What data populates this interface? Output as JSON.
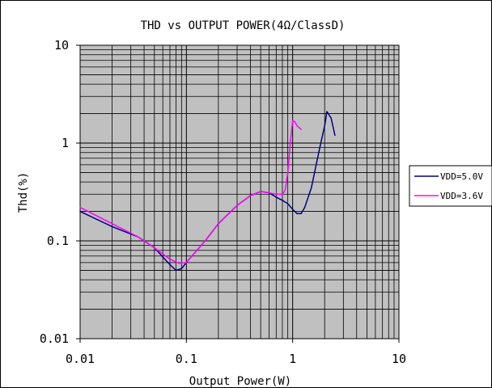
{
  "chart_data": {
    "type": "line",
    "title": "THD vs OUTPUT POWER(4Ω/ClassD)",
    "xlabel": "Output Power(W)",
    "ylabel": "Thd(%)",
    "x_scale": "log",
    "y_scale": "log",
    "xlim": [
      0.01,
      10
    ],
    "ylim": [
      0.01,
      10
    ],
    "x_ticks": [
      0.01,
      0.1,
      1,
      10
    ],
    "x_tick_labels": [
      "0.01",
      "0.1",
      "1",
      "10"
    ],
    "y_ticks": [
      0.01,
      0.1,
      1,
      10
    ],
    "y_tick_labels": [
      "0.01",
      "0.1",
      "1",
      "10"
    ],
    "grid": true,
    "legend_position": "right",
    "background_color": "#c0c0c0",
    "series": [
      {
        "name": "VDD=5.0V",
        "color": "#000080",
        "x": [
          0.01,
          0.02,
          0.035,
          0.05,
          0.07,
          0.08,
          0.09,
          0.1,
          0.15,
          0.2,
          0.3,
          0.4,
          0.5,
          0.6,
          0.7,
          0.8,
          0.9,
          1.0,
          1.1,
          1.2,
          1.3,
          1.5,
          1.8,
          2.0,
          2.1,
          2.3,
          2.5
        ],
        "y": [
          0.2,
          0.14,
          0.11,
          0.085,
          0.057,
          0.05,
          0.052,
          0.06,
          0.1,
          0.15,
          0.23,
          0.29,
          0.32,
          0.31,
          0.28,
          0.26,
          0.24,
          0.21,
          0.19,
          0.19,
          0.22,
          0.35,
          0.9,
          1.5,
          2.1,
          1.8,
          1.2
        ]
      },
      {
        "name": "VDD=3.6V",
        "color": "#ff00ff",
        "x": [
          0.01,
          0.02,
          0.035,
          0.05,
          0.07,
          0.085,
          0.1,
          0.15,
          0.2,
          0.3,
          0.4,
          0.5,
          0.6,
          0.7,
          0.8,
          0.85,
          0.9,
          0.95,
          1.0,
          1.05,
          1.1,
          1.2
        ],
        "y": [
          0.22,
          0.15,
          0.11,
          0.085,
          0.065,
          0.059,
          0.06,
          0.1,
          0.15,
          0.23,
          0.29,
          0.32,
          0.31,
          0.3,
          0.3,
          0.33,
          0.5,
          1.0,
          1.7,
          1.65,
          1.5,
          1.38
        ]
      }
    ]
  }
}
